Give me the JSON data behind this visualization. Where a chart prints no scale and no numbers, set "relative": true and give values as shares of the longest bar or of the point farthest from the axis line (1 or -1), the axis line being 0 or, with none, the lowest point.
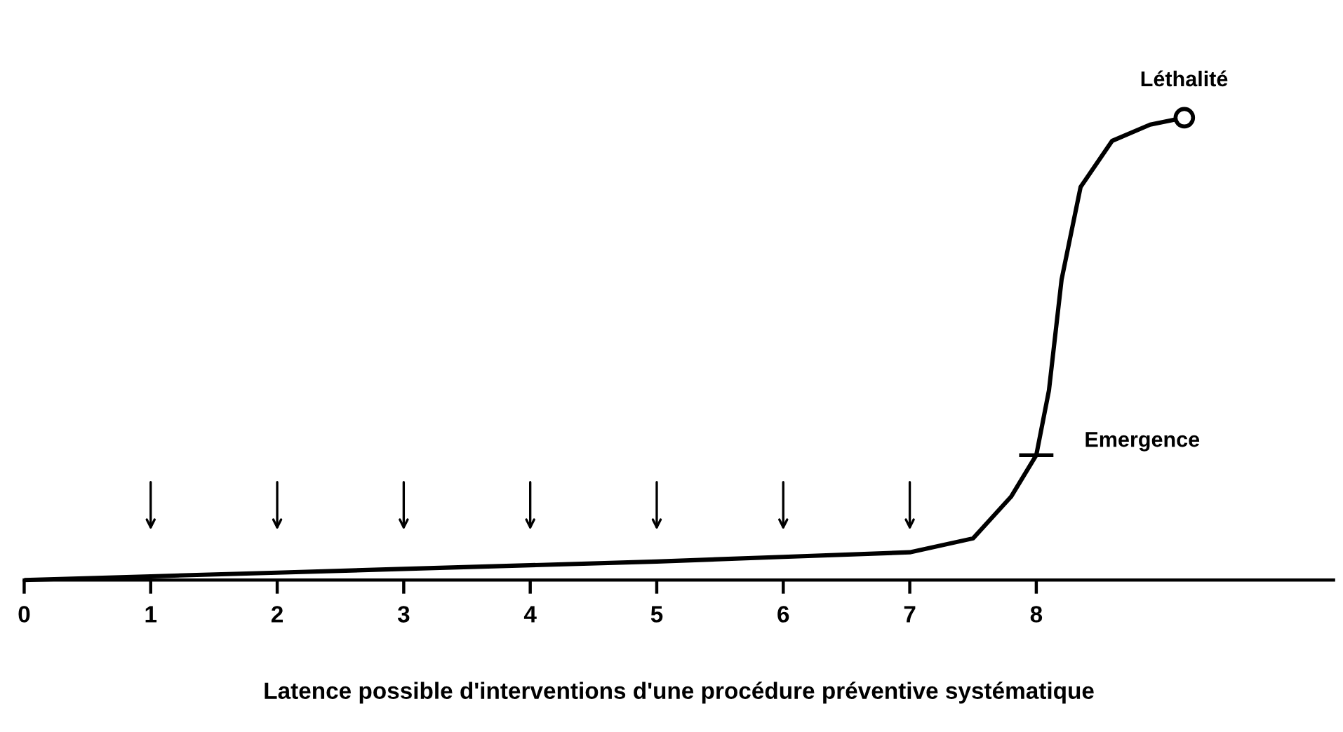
{
  "chart_data": {
    "type": "line",
    "relative": true,
    "xlabel": "Latence possible d'interventions d'une procédure préventive systématique",
    "x": [
      0,
      1,
      2,
      3,
      4,
      5,
      6,
      7,
      7.5,
      7.8,
      8.0,
      8.1,
      8.2,
      8.35,
      8.6,
      8.9,
      9.17
    ],
    "series": [
      {
        "color": "#000000",
        "values": [
          0,
          0.008,
          0.016,
          0.024,
          0.032,
          0.04,
          0.05,
          0.06,
          0.09,
          0.18,
          0.27,
          0.41,
          0.65,
          0.85,
          0.95,
          0.985,
          1
        ]
      }
    ],
    "xlim": [
      0,
      10.35
    ],
    "xticks": [
      0,
      1,
      2,
      3,
      4,
      5,
      6,
      7,
      8
    ],
    "annotations": [
      {
        "text": "Emergence",
        "x": 8.0,
        "y": 0.27
      },
      {
        "text": "Léthalité",
        "x": 9.17,
        "y": 1
      }
    ],
    "grid": false,
    "legend": false,
    "marker": "none",
    "line_style": "solid"
  }
}
